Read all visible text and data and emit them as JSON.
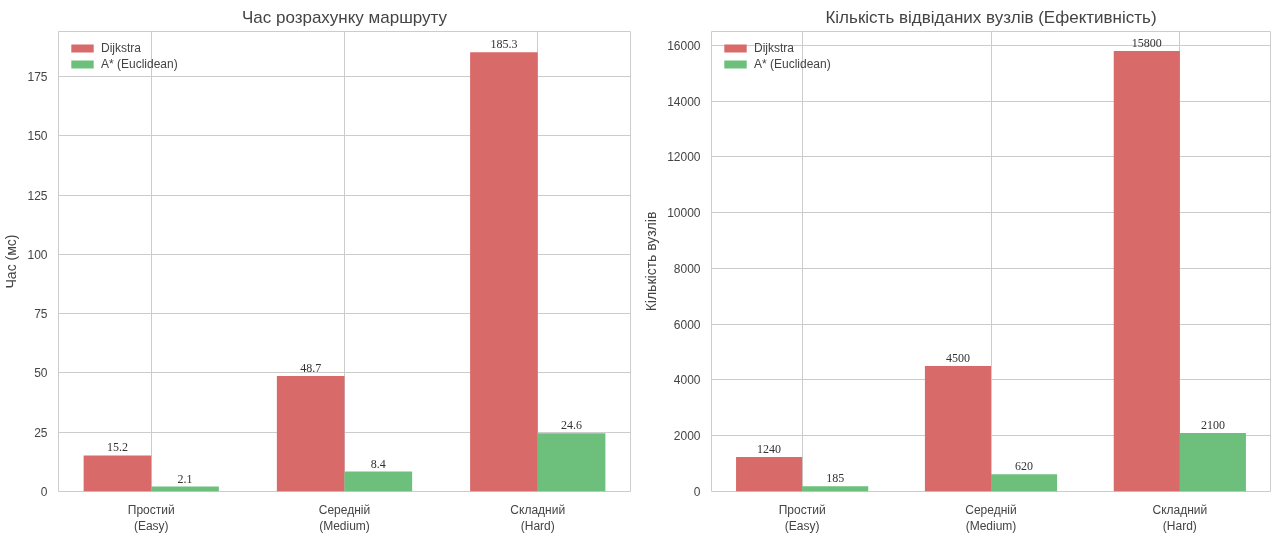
{
  "chart_data": [
    {
      "type": "bar",
      "title": "Час розрахунку маршруту",
      "ylabel": "Час (мс)",
      "categories": [
        "Простий\n(Easy)",
        "Середній\n(Medium)",
        "Складний\n(Hard)"
      ],
      "series": [
        {
          "name": "Dijkstra",
          "color": "#d86a6a",
          "values": [
            15.2,
            48.7,
            185.3
          ]
        },
        {
          "name": "A* (Euclidean)",
          "color": "#6cc07c",
          "values": [
            2.1,
            8.4,
            24.6
          ]
        }
      ],
      "ylim": [
        0,
        194
      ],
      "yticks": [
        0,
        25,
        50,
        75,
        100,
        125,
        150,
        175
      ],
      "grid": true,
      "legend": "top left",
      "data_labels": true
    },
    {
      "type": "bar",
      "title": "Кількість відвіданих вузлів (Ефективність)",
      "ylabel": "Кількість вузлів",
      "categories": [
        "Простий\n(Easy)",
        "Середній\n(Medium)",
        "Складний\n(Hard)"
      ],
      "series": [
        {
          "name": "Dijkstra",
          "color": "#d86a6a",
          "values": [
            1240,
            4500,
            15800
          ]
        },
        {
          "name": "A* (Euclidean)",
          "color": "#6cc07c",
          "values": [
            185,
            620,
            2100
          ]
        }
      ],
      "ylim": [
        0,
        16500
      ],
      "yticks": [
        0,
        2000,
        4000,
        6000,
        8000,
        10000,
        12000,
        14000,
        16000
      ],
      "grid": true,
      "legend": "top left",
      "data_labels": true
    }
  ]
}
